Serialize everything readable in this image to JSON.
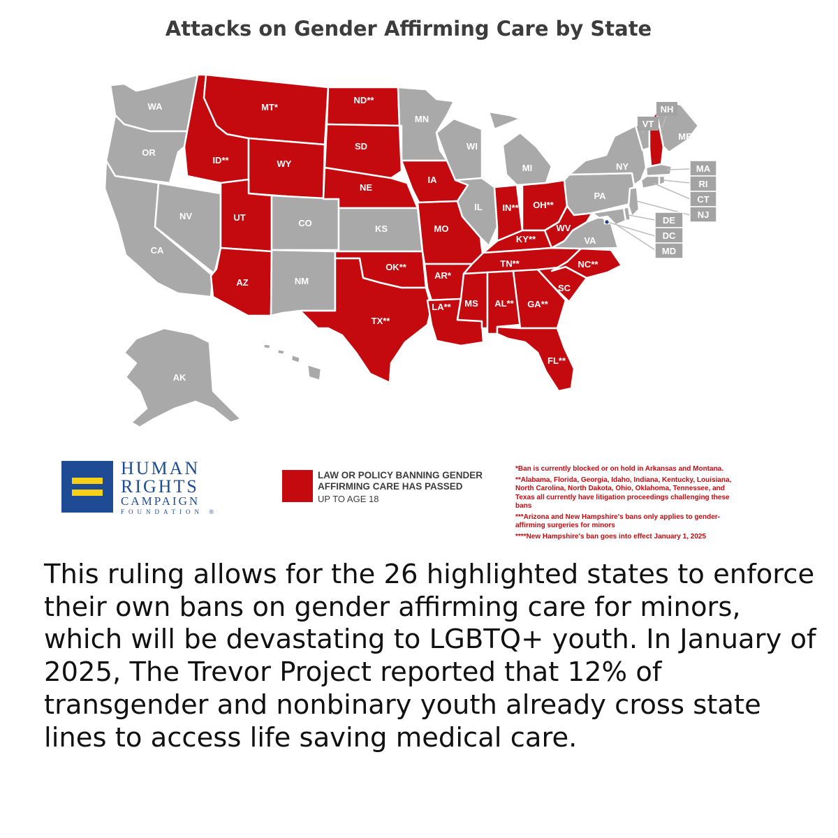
{
  "title": "Attacks on Gender Affirming Care by State",
  "colors": {
    "ban": "#c4090f",
    "no_ban": "#a9a9a9",
    "hrc_blue": "#1e4b93",
    "hrc_yellow": "#f7d117"
  },
  "states": {
    "WA": {
      "label": "WA",
      "status": "no_ban"
    },
    "OR": {
      "label": "OR",
      "status": "no_ban"
    },
    "CA": {
      "label": "CA",
      "status": "no_ban"
    },
    "NV": {
      "label": "NV",
      "status": "no_ban"
    },
    "ID": {
      "label": "ID**",
      "status": "ban"
    },
    "MT": {
      "label": "MT*",
      "status": "ban"
    },
    "WY": {
      "label": "WY",
      "status": "ban"
    },
    "UT": {
      "label": "UT",
      "status": "ban"
    },
    "AZ": {
      "label": "AZ",
      "status": "ban"
    },
    "CO": {
      "label": "CO",
      "status": "no_ban"
    },
    "NM": {
      "label": "NM",
      "status": "no_ban"
    },
    "ND": {
      "label": "ND**",
      "status": "ban"
    },
    "SD": {
      "label": "SD",
      "status": "ban"
    },
    "NE": {
      "label": "NE",
      "status": "ban"
    },
    "KS": {
      "label": "KS",
      "status": "no_ban"
    },
    "OK": {
      "label": "OK**",
      "status": "ban"
    },
    "TX": {
      "label": "TX**",
      "status": "ban"
    },
    "MN": {
      "label": "MN",
      "status": "no_ban"
    },
    "IA": {
      "label": "IA",
      "status": "ban"
    },
    "MO": {
      "label": "MO",
      "status": "ban"
    },
    "AR": {
      "label": "AR*",
      "status": "ban"
    },
    "LA": {
      "label": "LA**",
      "status": "ban"
    },
    "WI": {
      "label": "WI",
      "status": "no_ban"
    },
    "IL": {
      "label": "IL",
      "status": "no_ban"
    },
    "MI": {
      "label": "MI",
      "status": "no_ban"
    },
    "IN": {
      "label": "IN**",
      "status": "ban"
    },
    "OH": {
      "label": "OH**",
      "status": "ban"
    },
    "KY": {
      "label": "KY**",
      "status": "ban"
    },
    "TN": {
      "label": "TN**",
      "status": "ban"
    },
    "MS": {
      "label": "MS",
      "status": "ban"
    },
    "AL": {
      "label": "AL**",
      "status": "ban"
    },
    "GA": {
      "label": "GA**",
      "status": "ban"
    },
    "FL": {
      "label": "FL**",
      "status": "ban"
    },
    "SC": {
      "label": "SC",
      "status": "ban"
    },
    "NC": {
      "label": "NC**",
      "status": "ban"
    },
    "VA": {
      "label": "VA",
      "status": "no_ban"
    },
    "WV": {
      "label": "WV",
      "status": "ban"
    },
    "PA": {
      "label": "PA",
      "status": "no_ban"
    },
    "NY": {
      "label": "NY",
      "status": "no_ban"
    },
    "VT": {
      "label": "VT",
      "status": "no_ban"
    },
    "NH": {
      "label": "NH",
      "status": "ban"
    },
    "ME": {
      "label": "ME",
      "status": "no_ban"
    },
    "MA": {
      "label": "MA",
      "status": "no_ban"
    },
    "RI": {
      "label": "RI",
      "status": "no_ban"
    },
    "CT": {
      "label": "CT",
      "status": "no_ban"
    },
    "NJ": {
      "label": "NJ",
      "status": "no_ban"
    },
    "DE": {
      "label": "DE",
      "status": "no_ban"
    },
    "DC": {
      "label": "DC",
      "status": "no_ban"
    },
    "MD": {
      "label": "MD",
      "status": "no_ban"
    },
    "AK": {
      "label": "AK",
      "status": "no_ban"
    },
    "HI": {
      "label": "",
      "status": "no_ban"
    }
  },
  "logo": {
    "line1": "HUMAN",
    "line2": "RIGHTS",
    "line3": "CAMPAIGN",
    "line4": "FOUNDATION",
    "mark": "®"
  },
  "legend": {
    "label": "LAW OR POLICY BANNING GENDER AFFIRMING CARE HAS PASSED",
    "sublabel": "UP TO AGE 18"
  },
  "notes": [
    "*Ban is currently blocked or on hold in Arkansas and Montana.",
    "**Alabama, Florida, Georgia, Idaho, Indiana, Kentucky, Louisiana, North Carolina, North Dakota, Ohio, Oklahoma, Tennessee, and Texas all currently have litigation proceedings challenging these bans",
    "***Arizona and New Hampshire's bans only applies to gender-affirming surgeries for minors",
    "****New Hampshire's ban goes into effect January 1, 2025"
  ],
  "body_text": "This ruling allows for the 26 highlighted states to enforce their own bans on gender affirming care for minors, which will be devastating to LGBTQ+ youth. In January of 2025, The Trevor Project reported that 12% of transgender and nonbinary youth already cross state lines to access life saving medical care."
}
